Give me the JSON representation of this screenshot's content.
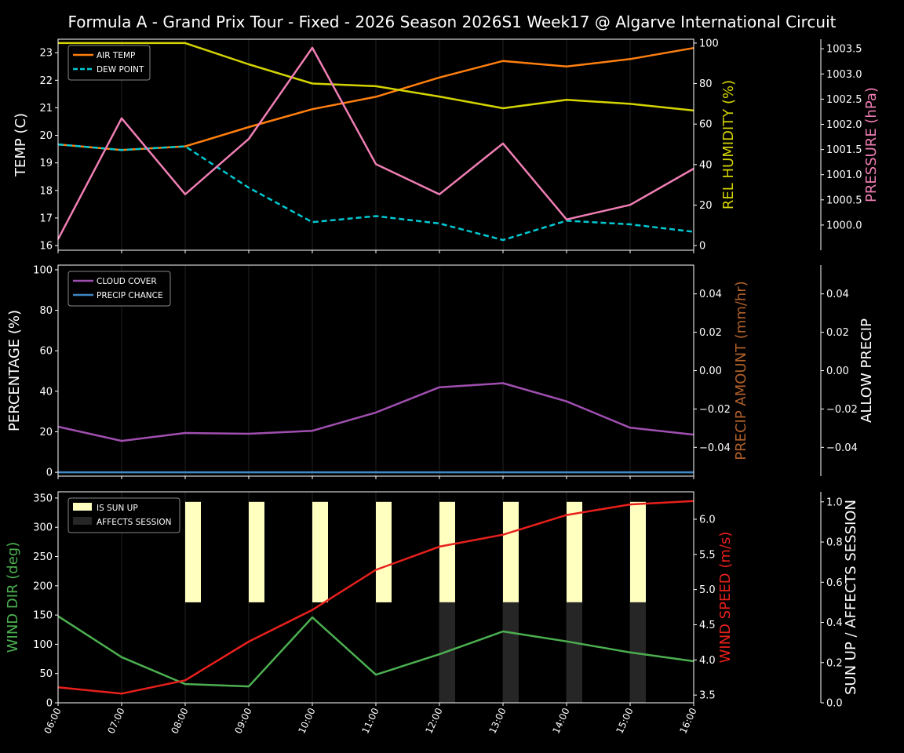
{
  "title": "Formula A - Grand Prix Tour - Fixed - 2026 Season  2026S1 Week17 @ Algarve International Circuit",
  "x_ticks": [
    "06:00",
    "07:00",
    "08:00",
    "09:00",
    "10:00",
    "11:00",
    "12:00",
    "13:00",
    "14:00",
    "15:00",
    "16:00"
  ],
  "chart_data": [
    {
      "type": "line",
      "categories": [
        "06:00",
        "07:00",
        "08:00",
        "09:00",
        "10:00",
        "11:00",
        "12:00",
        "13:00",
        "14:00",
        "15:00",
        "16:00"
      ],
      "left_axis": {
        "label": "TEMP (C)",
        "color": "#ffffff",
        "ylim": [
          15.83,
          23.49
        ],
        "ticks": [
          16,
          17,
          18,
          19,
          20,
          21,
          22,
          23
        ],
        "tick_labels": [
          "16",
          "17",
          "18",
          "19",
          "20",
          "21",
          "22",
          "23"
        ]
      },
      "right_axis": {
        "label": "REL HUMIDITY (%)",
        "color": "#d4d400",
        "ylim": [
          -2.3,
          101.9
        ],
        "ticks": [
          0,
          20,
          40,
          60,
          80,
          100
        ],
        "tick_labels": [
          "0",
          "20",
          "40",
          "60",
          "80",
          "100"
        ]
      },
      "far_axis": {
        "label": "PRESSURE (hPa)",
        "color": "#f07eb4",
        "ylim": [
          999.5,
          1003.69
        ],
        "ticks": [
          1000,
          1000.5,
          1001,
          1001.5,
          1002,
          1002.5,
          1003,
          1003.5
        ],
        "tick_labels": [
          "1000.0",
          "1000.5",
          "1001.0",
          "1001.5",
          "1002.0",
          "1002.5",
          "1003.0",
          "1003.5"
        ]
      },
      "legend": {
        "placement": "top-left"
      },
      "series": [
        {
          "name": "AIR TEMP",
          "axis": "left",
          "color": "#ff7f0e",
          "dash": false,
          "legend": true,
          "values": [
            19.67,
            19.47,
            19.6,
            20.3,
            20.95,
            21.4,
            22.1,
            22.7,
            22.5,
            22.77,
            23.17
          ]
        },
        {
          "name": "DEW POINT",
          "axis": "left",
          "color": "#00c8d2",
          "dash": true,
          "legend": true,
          "values": [
            19.67,
            19.47,
            19.6,
            18.1,
            16.85,
            17.07,
            16.8,
            16.2,
            16.9,
            16.77,
            16.5
          ]
        },
        {
          "axis": "right",
          "color": "#d4d400",
          "dash": false,
          "legend": false,
          "values": [
            100,
            100,
            100,
            89.5,
            80,
            78.7,
            73.6,
            67.8,
            72,
            70,
            66.7
          ]
        },
        {
          "axis": "far",
          "color": "#f07eb4",
          "dash": false,
          "legend": false,
          "values": [
            999.72,
            1002.12,
            1000.61,
            1001.71,
            1003.52,
            1001.21,
            1000.61,
            1001.62,
            1000.11,
            1000.4,
            1001.12
          ]
        }
      ]
    },
    {
      "type": "line",
      "categories": [
        "06:00",
        "07:00",
        "08:00",
        "09:00",
        "10:00",
        "11:00",
        "12:00",
        "13:00",
        "14:00",
        "15:00",
        "16:00"
      ],
      "left_axis": {
        "label": "PERCENTAGE (%)",
        "color": "#ffffff",
        "ylim": [
          -1.9,
          102.3
        ],
        "ticks": [
          0,
          20,
          40,
          60,
          80,
          100
        ],
        "tick_labels": [
          "0",
          "20",
          "40",
          "60",
          "80",
          "100"
        ]
      },
      "right_axis": {
        "label": "PRECIP AMOUNT (mm/hr)",
        "color": "#b0602a",
        "ylim": [
          -0.055,
          0.055
        ],
        "ticks": [
          -0.04,
          -0.02,
          0,
          0.02,
          0.04
        ],
        "tick_labels": [
          "−0.04",
          "−0.02",
          "0.00",
          "0.02",
          "0.04"
        ]
      },
      "far_axis": {
        "label": "ALLOW PRECIP",
        "color": "#ffffff",
        "ylim": [
          -0.055,
          0.055
        ],
        "ticks": [
          -0.04,
          -0.02,
          0,
          0.02,
          0.04
        ],
        "tick_labels": [
          "−0.04",
          "−0.02",
          "0.00",
          "0.02",
          "0.04"
        ]
      },
      "legend": {
        "placement": "top-left"
      },
      "series": [
        {
          "name": "CLOUD COVER",
          "axis": "left",
          "color": "#a04fb0",
          "dash": false,
          "legend": true,
          "values": [
            22.5,
            15.5,
            19.4,
            19,
            20.5,
            29.5,
            42,
            44,
            35,
            22,
            18.6
          ]
        },
        {
          "name": "PRECIP CHANCE",
          "axis": "left",
          "color": "#3f88c5",
          "dash": false,
          "legend": true,
          "values": [
            0,
            0,
            0,
            0,
            0,
            0,
            0,
            0,
            0,
            0,
            0
          ]
        }
      ]
    },
    {
      "type": "line",
      "categories": [
        "06:00",
        "07:00",
        "08:00",
        "09:00",
        "10:00",
        "11:00",
        "12:00",
        "13:00",
        "14:00",
        "15:00",
        "16:00"
      ],
      "left_axis": {
        "label": "WIND DIR (deg)",
        "color": "#4caf50",
        "ylim": [
          0,
          360.6
        ],
        "ticks": [
          0,
          50,
          100,
          150,
          200,
          250,
          300,
          350
        ],
        "tick_labels": [
          "0",
          "50",
          "100",
          "150",
          "200",
          "250",
          "300",
          "350"
        ]
      },
      "right_axis": {
        "label": "WIND SPEED (m/s)",
        "color": "#e8201c",
        "ylim": [
          3.39,
          6.39
        ],
        "ticks": [
          3.5,
          4,
          4.5,
          5,
          5.5,
          6
        ],
        "tick_labels": [
          "3.5",
          "4.0",
          "4.5",
          "5.0",
          "5.5",
          "6.0"
        ]
      },
      "far_axis": {
        "label": "SUN UP / AFFECTS SESSION",
        "color": "#ffffff",
        "ylim": [
          0,
          1.05
        ],
        "ticks": [
          0,
          0.2,
          0.4,
          0.6,
          0.8,
          1.0
        ],
        "tick_labels": [
          "0.0",
          "0.2",
          "0.4",
          "0.6",
          "0.8",
          "1.0"
        ]
      },
      "legend": {
        "placement": "top-left"
      },
      "bars": [
        {
          "name": "IS SUN UP",
          "color": "#ffffc0",
          "range": [
            0.5,
            1.0
          ],
          "values": [
            0,
            0,
            1,
            1,
            1,
            1,
            1,
            1,
            1,
            1,
            0
          ]
        },
        {
          "name": "AFFECTS SESSION",
          "color": "#262626",
          "range": [
            0,
            0.5
          ],
          "values": [
            0,
            0,
            0,
            0,
            0,
            0,
            1,
            1,
            1,
            1,
            0
          ]
        }
      ],
      "series": [
        {
          "axis": "left",
          "color": "#4caf50",
          "dash": false,
          "legend": false,
          "values": [
            148,
            78,
            32,
            28,
            146,
            48,
            83,
            122,
            105,
            86,
            71
          ]
        },
        {
          "axis": "right",
          "color": "#e8201c",
          "dash": false,
          "legend": false,
          "values": [
            3.61,
            3.52,
            3.71,
            4.26,
            4.71,
            5.28,
            5.61,
            5.78,
            6.06,
            6.21,
            6.26
          ]
        }
      ]
    }
  ]
}
